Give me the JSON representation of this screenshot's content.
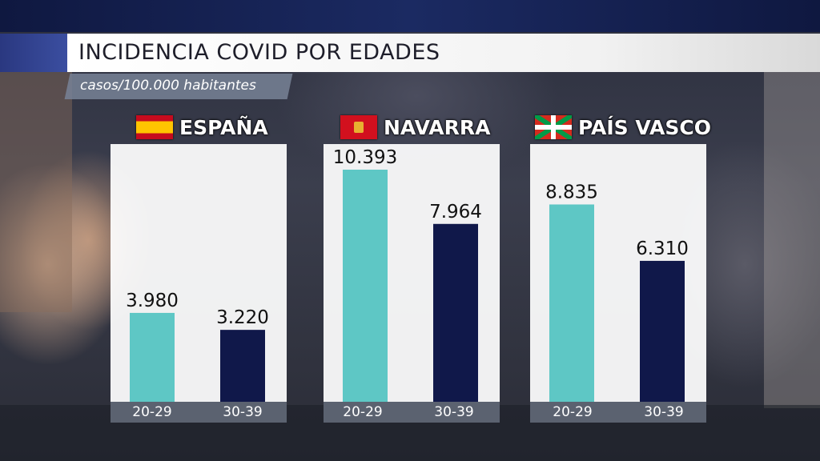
{
  "title": "INCIDENCIA COVID POR EDADES",
  "subtitle": "casos/100.000 habitantes",
  "colors": {
    "age_20_29": "#5ec7c5",
    "age_30_39": "#10184a",
    "panel": "#ffffff",
    "axis_strip": "#5b6270"
  },
  "chart_data": [
    {
      "type": "bar",
      "title": "ESPAÑA",
      "flag_icon": "spain-flag-icon",
      "categories": [
        "20-29",
        "30-39"
      ],
      "values": [
        3980,
        3220
      ],
      "labels": [
        "3.980",
        "3.220"
      ]
    },
    {
      "type": "bar",
      "title": "NAVARRA",
      "flag_icon": "navarra-flag-icon",
      "categories": [
        "20-29",
        "30-39"
      ],
      "values": [
        10393,
        7964
      ],
      "labels": [
        "10.393",
        "7.964"
      ]
    },
    {
      "type": "bar",
      "title": "PAÍS VASCO",
      "flag_icon": "basque-flag-icon",
      "categories": [
        "20-29",
        "30-39"
      ],
      "values": [
        8835,
        6310
      ],
      "labels": [
        "8.835",
        "6.310"
      ]
    }
  ]
}
